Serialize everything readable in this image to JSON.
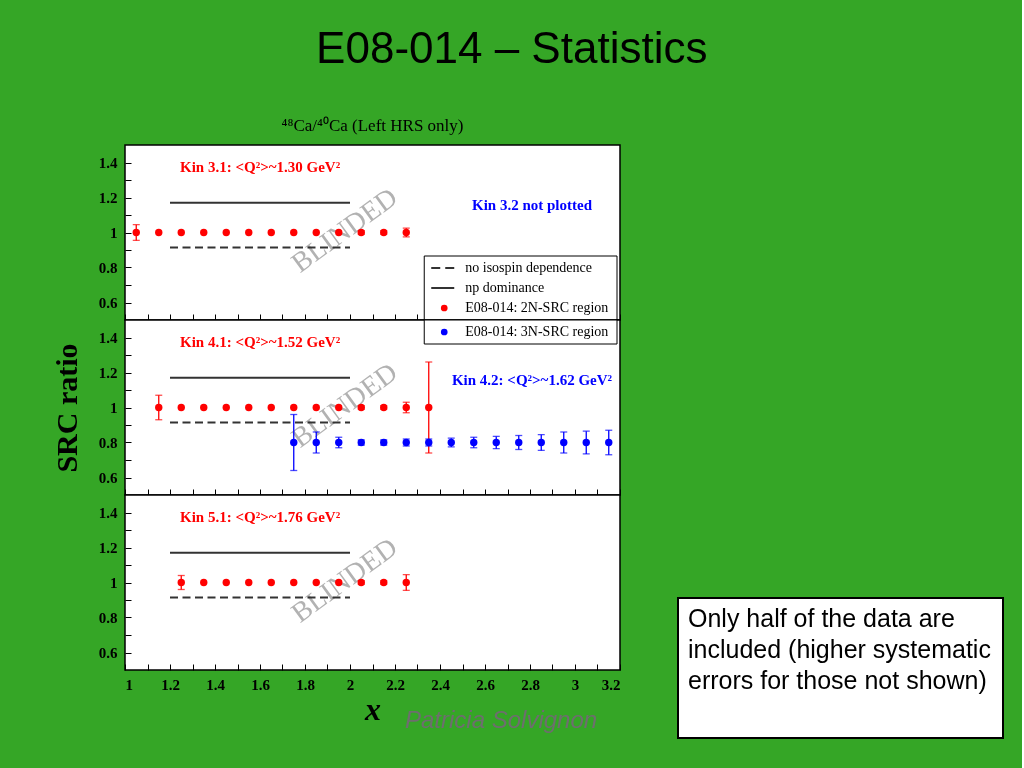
{
  "chart_data": [
    {
      "type": "scatter",
      "title": "E08-014 – Statistics",
      "subtitle": "⁴⁸Ca/⁴⁰Ca (Left HRS only)",
      "xlim": [
        1,
        3.2
      ],
      "xticks": [
        1,
        {
          "value": 1.1,
          "label": null
        },
        1.2,
        {
          "value": 1.3,
          "label": null
        },
        1.4,
        {
          "value": 1.5,
          "label": null
        },
        1.6,
        {
          "value": 1.7,
          "label": null
        },
        1.8,
        {
          "value": 1.9,
          "label": null
        },
        2,
        {
          "value": 2.1,
          "label": null
        },
        2.2,
        {
          "value": 2.3,
          "label": null
        },
        2.4,
        {
          "value": 2.5,
          "label": null
        },
        2.6,
        {
          "value": 2.7,
          "label": null
        },
        2.8,
        {
          "value": 2.9,
          "label": null
        },
        3,
        {
          "value": 3.1,
          "label": null
        },
        3.2
      ],
      "ylim": [
        0.5,
        1.5
      ],
      "yticks": [
        0.6,
        {
          "value": 0.7,
          "label": null
        },
        0.8,
        {
          "value": 0.9,
          "label": null
        },
        1,
        {
          "value": 1.1,
          "label": null
        },
        1.2,
        {
          "value": 1.3,
          "label": null
        },
        1.4
      ],
      "tick_labels": "y",
      "legend": "bottom right",
      "annotations": [
        "BLINDED",
        "Kin 3.1: <Q²>~1.30 GeV²",
        "Kin 3.2 not plotted"
      ],
      "series": [
        {
          "name": "no isospin dependence",
          "type": "line",
          "x": [
            1.2,
            2.0
          ],
          "values": [
            0.915,
            0.915
          ],
          "color": "#333333",
          "line_style": "dashed"
        },
        {
          "name": "np dominance",
          "type": "line",
          "x": [
            1.2,
            2.0
          ],
          "values": [
            1.17,
            1.17
          ],
          "color": "#333333"
        },
        {
          "name": "E08-014: 2N-SRC region",
          "type": "scatter",
          "marker": "circle",
          "color": "#ff0000",
          "x": [
            1.05,
            1.15,
            1.25,
            1.35,
            1.45,
            1.55,
            1.65,
            1.75,
            1.85,
            1.95,
            2.05,
            2.15,
            2.25
          ],
          "values": [
            1,
            1,
            1,
            1,
            1,
            1,
            1,
            1,
            1,
            1,
            1,
            1,
            1
          ],
          "errors": [
            0.045,
            null,
            null,
            null,
            null,
            null,
            null,
            null,
            null,
            null,
            0.01,
            0.01,
            0.025
          ]
        }
      ]
    },
    {
      "type": "scatter",
      "ylabel": "SRC ratio",
      "xlim": [
        1,
        3.2
      ],
      "xticks": [
        1,
        {
          "value": 1.1,
          "label": null
        },
        1.2,
        {
          "value": 1.3,
          "label": null
        },
        1.4,
        {
          "value": 1.5,
          "label": null
        },
        1.6,
        {
          "value": 1.7,
          "label": null
        },
        1.8,
        {
          "value": 1.9,
          "label": null
        },
        2,
        {
          "value": 2.1,
          "label": null
        },
        2.2,
        {
          "value": 2.3,
          "label": null
        },
        2.4,
        {
          "value": 2.5,
          "label": null
        },
        2.6,
        {
          "value": 2.7,
          "label": null
        },
        2.8,
        {
          "value": 2.9,
          "label": null
        },
        3,
        {
          "value": 3.1,
          "label": null
        },
        3.2
      ],
      "ylim": [
        0.5,
        1.5
      ],
      "yticks": [
        0.6,
        {
          "value": 0.7,
          "label": null
        },
        0.8,
        {
          "value": 0.9,
          "label": null
        },
        1,
        {
          "value": 1.1,
          "label": null
        },
        1.2,
        {
          "value": 1.3,
          "label": null
        },
        1.4
      ],
      "tick_labels": "y",
      "legend": "top right",
      "annotations": [
        "BLINDED",
        "Kin 4.1: <Q²>~1.52 GeV²",
        "Kin 4.2: <Q²>~1.62 GeV²"
      ],
      "series": [
        {
          "type": "line",
          "x": [
            1.2,
            2.0
          ],
          "values": [
            0.915,
            0.915
          ],
          "color": "#333333",
          "line_style": "dashed"
        },
        {
          "type": "line",
          "x": [
            1.2,
            2.0
          ],
          "values": [
            1.17,
            1.17
          ],
          "color": "#333333"
        },
        {
          "type": "scatter",
          "marker": "circle",
          "color": "#ff0000",
          "x": [
            1.15,
            1.25,
            1.35,
            1.45,
            1.55,
            1.65,
            1.75,
            1.85,
            1.95,
            2.05,
            2.15,
            2.25,
            2.35
          ],
          "values": [
            1,
            1,
            1,
            1,
            1,
            1,
            1,
            1,
            1,
            1,
            1,
            1,
            1
          ],
          "errors": [
            0.07,
            null,
            null,
            null,
            null,
            null,
            null,
            null,
            null,
            0.01,
            0.01,
            0.03,
            0.26
          ]
        },
        {
          "name": "E08-014: 3N-SRC region",
          "type": "scatter",
          "marker": "circle",
          "color": "#0000ff",
          "x": [
            1.75,
            1.85,
            1.95,
            2.05,
            2.15,
            2.25,
            2.35,
            2.45,
            2.55,
            2.65,
            2.75,
            2.85,
            2.95,
            3.05,
            3.15
          ],
          "values": [
            0.8,
            0.8,
            0.8,
            0.8,
            0.8,
            0.8,
            0.8,
            0.8,
            0.8,
            0.8,
            0.8,
            0.8,
            0.8,
            0.8,
            0.8
          ],
          "errors": [
            0.16,
            0.06,
            0.03,
            0.015,
            0.015,
            0.02,
            0.02,
            0.025,
            0.03,
            0.035,
            0.04,
            0.045,
            0.06,
            0.065,
            0.07
          ]
        }
      ]
    },
    {
      "type": "scatter",
      "xlabel": "x",
      "xlim": [
        1,
        3.2
      ],
      "xticks": [
        1,
        {
          "value": 1.1,
          "label": null
        },
        1.2,
        {
          "value": 1.3,
          "label": null
        },
        1.4,
        {
          "value": 1.5,
          "label": null
        },
        1.6,
        {
          "value": 1.7,
          "label": null
        },
        1.8,
        {
          "value": 1.9,
          "label": null
        },
        2,
        {
          "value": 2.1,
          "label": null
        },
        2.2,
        {
          "value": 2.3,
          "label": null
        },
        2.4,
        {
          "value": 2.5,
          "label": null
        },
        2.6,
        {
          "value": 2.7,
          "label": null
        },
        2.8,
        {
          "value": 2.9,
          "label": null
        },
        3,
        {
          "value": 3.1,
          "label": null
        },
        3.2
      ],
      "ylim": [
        0.5,
        1.5
      ],
      "yticks": [
        0.6,
        {
          "value": 0.7,
          "label": null
        },
        0.8,
        {
          "value": 0.9,
          "label": null
        },
        1,
        {
          "value": 1.1,
          "label": null
        },
        1.2,
        {
          "value": 1.3,
          "label": null
        },
        1.4
      ],
      "annotations": [
        "BLINDED",
        "Kin 5.1: <Q²>~1.76 GeV²"
      ],
      "series": [
        {
          "type": "line",
          "x": [
            1.2,
            2.0
          ],
          "values": [
            0.915,
            0.915
          ],
          "color": "#333333",
          "line_style": "dashed"
        },
        {
          "type": "line",
          "x": [
            1.2,
            2.0
          ],
          "values": [
            1.17,
            1.17
          ],
          "color": "#333333"
        },
        {
          "type": "scatter",
          "marker": "circle",
          "color": "#ff0000",
          "x": [
            1.25,
            1.35,
            1.45,
            1.55,
            1.65,
            1.75,
            1.85,
            1.95,
            2.05,
            2.15,
            2.25
          ],
          "values": [
            1,
            1,
            1,
            1,
            1,
            1,
            1,
            1,
            1,
            1,
            1
          ],
          "errors": [
            0.04,
            null,
            null,
            null,
            null,
            null,
            null,
            null,
            0.01,
            0.01,
            0.045
          ]
        }
      ]
    },
    {
      "type": "other",
      "annotations": [
        "Only half of the data are included (higher systematic errors for those not shown)",
        "Patricia Solvignon"
      ]
    }
  ]
}
